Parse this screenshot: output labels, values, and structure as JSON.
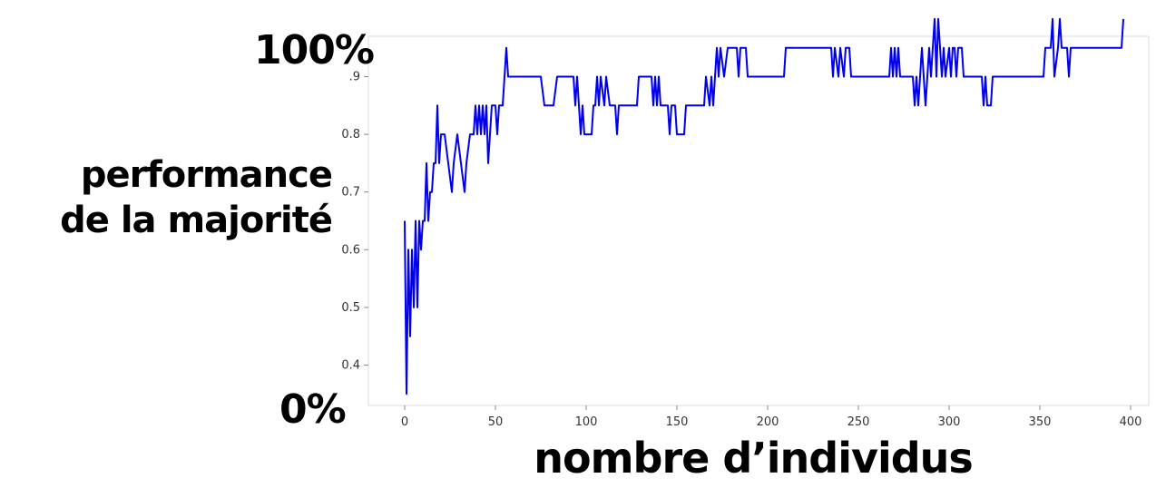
{
  "overlay": {
    "ylabel_line1": "performance",
    "ylabel_line2": "de la majorité",
    "ytop": "100%",
    "ybottom": "0%",
    "xlabel": "nombre d’individus"
  },
  "chart_data": {
    "type": "line",
    "xlim": [
      -20,
      410
    ],
    "ylim": [
      0.33,
      0.97
    ],
    "x_ticks": [
      0,
      50,
      100,
      150,
      200,
      250,
      300,
      350,
      400
    ],
    "y_ticks": [
      0.4,
      0.5,
      0.6,
      0.7,
      0.8,
      0.9
    ],
    "y_tick_labels": [
      "0.4",
      "0.5",
      "0.6",
      "0.7",
      "0.8",
      ".9"
    ],
    "grid": false,
    "line_color": "#0000ee",
    "series": [
      {
        "points": [
          [
            0,
            0.65
          ],
          [
            1,
            0.35
          ],
          [
            2,
            0.6
          ],
          [
            3,
            0.45
          ],
          [
            4,
            0.6
          ],
          [
            5,
            0.5
          ],
          [
            6,
            0.65
          ],
          [
            7,
            0.5
          ],
          [
            8,
            0.65
          ],
          [
            9,
            0.6
          ],
          [
            10,
            0.65
          ],
          [
            11,
            0.65
          ],
          [
            12,
            0.75
          ],
          [
            13,
            0.65
          ],
          [
            14,
            0.7
          ],
          [
            15,
            0.7
          ],
          [
            16,
            0.75
          ],
          [
            17,
            0.75
          ],
          [
            18,
            0.85
          ],
          [
            19,
            0.75
          ],
          [
            20,
            0.8
          ],
          [
            22,
            0.8
          ],
          [
            24,
            0.75
          ],
          [
            26,
            0.7
          ],
          [
            27,
            0.75
          ],
          [
            29,
            0.8
          ],
          [
            31,
            0.75
          ],
          [
            33,
            0.7
          ],
          [
            34,
            0.75
          ],
          [
            36,
            0.8
          ],
          [
            38,
            0.8
          ],
          [
            39,
            0.85
          ],
          [
            40,
            0.8
          ],
          [
            41,
            0.85
          ],
          [
            42,
            0.8
          ],
          [
            43,
            0.85
          ],
          [
            44,
            0.8
          ],
          [
            45,
            0.85
          ],
          [
            46,
            0.75
          ],
          [
            47,
            0.8
          ],
          [
            48,
            0.85
          ],
          [
            50,
            0.85
          ],
          [
            51,
            0.8
          ],
          [
            52,
            0.85
          ],
          [
            54,
            0.85
          ],
          [
            55,
            0.9
          ],
          [
            56,
            0.95
          ],
          [
            57,
            0.9
          ],
          [
            60,
            0.9
          ],
          [
            75,
            0.9
          ],
          [
            77,
            0.85
          ],
          [
            82,
            0.85
          ],
          [
            84,
            0.9
          ],
          [
            93,
            0.9
          ],
          [
            94,
            0.85
          ],
          [
            95,
            0.9
          ],
          [
            96,
            0.85
          ],
          [
            97,
            0.8
          ],
          [
            98,
            0.85
          ],
          [
            99,
            0.8
          ],
          [
            103,
            0.8
          ],
          [
            104,
            0.85
          ],
          [
            105,
            0.85
          ],
          [
            106,
            0.9
          ],
          [
            107,
            0.85
          ],
          [
            108,
            0.9
          ],
          [
            110,
            0.85
          ],
          [
            111,
            0.9
          ],
          [
            113,
            0.85
          ],
          [
            116,
            0.85
          ],
          [
            117,
            0.8
          ],
          [
            118,
            0.85
          ],
          [
            128,
            0.85
          ],
          [
            129,
            0.9
          ],
          [
            136,
            0.9
          ],
          [
            137,
            0.85
          ],
          [
            138,
            0.9
          ],
          [
            139,
            0.85
          ],
          [
            140,
            0.9
          ],
          [
            141,
            0.85
          ],
          [
            145,
            0.85
          ],
          [
            146,
            0.8
          ],
          [
            147,
            0.85
          ],
          [
            149,
            0.85
          ],
          [
            150,
            0.8
          ],
          [
            154,
            0.8
          ],
          [
            155,
            0.85
          ],
          [
            165,
            0.85
          ],
          [
            166,
            0.9
          ],
          [
            168,
            0.85
          ],
          [
            169,
            0.9
          ],
          [
            170,
            0.85
          ],
          [
            171,
            0.9
          ],
          [
            172,
            0.95
          ],
          [
            173,
            0.9
          ],
          [
            174,
            0.95
          ],
          [
            176,
            0.9
          ],
          [
            178,
            0.95
          ],
          [
            183,
            0.95
          ],
          [
            184,
            0.9
          ],
          [
            185,
            0.95
          ],
          [
            188,
            0.95
          ],
          [
            189,
            0.9
          ],
          [
            209,
            0.9
          ],
          [
            210,
            0.95
          ],
          [
            235,
            0.95
          ],
          [
            236,
            0.9
          ],
          [
            237,
            0.95
          ],
          [
            239,
            0.9
          ],
          [
            240,
            0.95
          ],
          [
            242,
            0.9
          ],
          [
            243,
            0.95
          ],
          [
            245,
            0.95
          ],
          [
            246,
            0.9
          ],
          [
            267,
            0.9
          ],
          [
            268,
            0.95
          ],
          [
            269,
            0.9
          ],
          [
            270,
            0.95
          ],
          [
            271,
            0.9
          ],
          [
            272,
            0.95
          ],
          [
            273,
            0.9
          ],
          [
            280,
            0.9
          ],
          [
            281,
            0.85
          ],
          [
            282,
            0.9
          ],
          [
            283,
            0.85
          ],
          [
            284,
            0.9
          ],
          [
            285,
            0.95
          ],
          [
            286,
            0.9
          ],
          [
            287,
            0.85
          ],
          [
            288,
            0.9
          ],
          [
            289,
            0.95
          ],
          [
            290,
            0.9
          ],
          [
            291,
            0.95
          ],
          [
            292,
            1.0
          ],
          [
            293,
            0.9
          ],
          [
            294,
            1.0
          ],
          [
            295,
            0.95
          ],
          [
            296,
            0.9
          ],
          [
            297,
            0.95
          ],
          [
            298,
            0.9
          ],
          [
            300,
            0.95
          ],
          [
            301,
            0.9
          ],
          [
            302,
            0.95
          ],
          [
            303,
            0.95
          ],
          [
            304,
            0.9
          ],
          [
            305,
            0.95
          ],
          [
            307,
            0.95
          ],
          [
            308,
            0.9
          ],
          [
            318,
            0.9
          ],
          [
            319,
            0.85
          ],
          [
            320,
            0.9
          ],
          [
            321,
            0.85
          ],
          [
            323,
            0.85
          ],
          [
            324,
            0.9
          ],
          [
            352,
            0.9
          ],
          [
            353,
            0.95
          ],
          [
            356,
            0.95
          ],
          [
            357,
            1.0
          ],
          [
            358,
            0.9
          ],
          [
            360,
            0.95
          ],
          [
            361,
            1.0
          ],
          [
            362,
            0.95
          ],
          [
            365,
            0.95
          ],
          [
            366,
            0.9
          ],
          [
            367,
            0.95
          ],
          [
            395,
            0.95
          ],
          [
            396,
            1.0
          ]
        ]
      }
    ]
  }
}
